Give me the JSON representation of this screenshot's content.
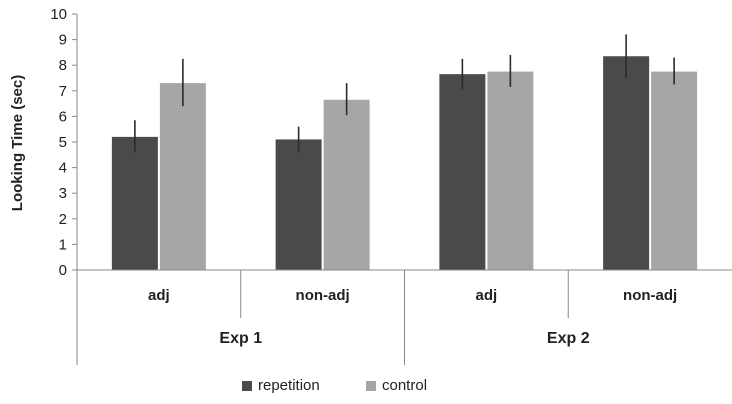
{
  "chart_data": {
    "type": "bar",
    "ylabel": "Looking Time (sec)",
    "ylim": [
      0,
      10
    ],
    "yticks": [
      "0",
      "1",
      "2",
      "3",
      "4",
      "5",
      "6",
      "7",
      "8",
      "9",
      "10"
    ],
    "categories": [
      "adj",
      "non-adj",
      "adj",
      "non-adj"
    ],
    "groups": [
      {
        "label": "Exp 1",
        "categories": [
          "adj",
          "non-adj"
        ]
      },
      {
        "label": "Exp 2",
        "categories": [
          "adj",
          "non-adj"
        ]
      }
    ],
    "series": [
      {
        "name": "repetition",
        "color": "#4a4a4a",
        "values": [
          5.2,
          5.1,
          7.65,
          8.35
        ],
        "error_low": [
          4.6,
          4.6,
          7.05,
          7.5
        ],
        "error_high": [
          5.85,
          5.6,
          8.25,
          9.2
        ]
      },
      {
        "name": "control",
        "color": "#a6a6a6",
        "values": [
          7.3,
          6.65,
          7.75,
          7.75
        ],
        "error_low": [
          6.4,
          6.05,
          7.15,
          7.25
        ],
        "error_high": [
          8.25,
          7.3,
          8.4,
          8.3
        ]
      }
    ],
    "legend_position": "bottom",
    "grid": false
  }
}
